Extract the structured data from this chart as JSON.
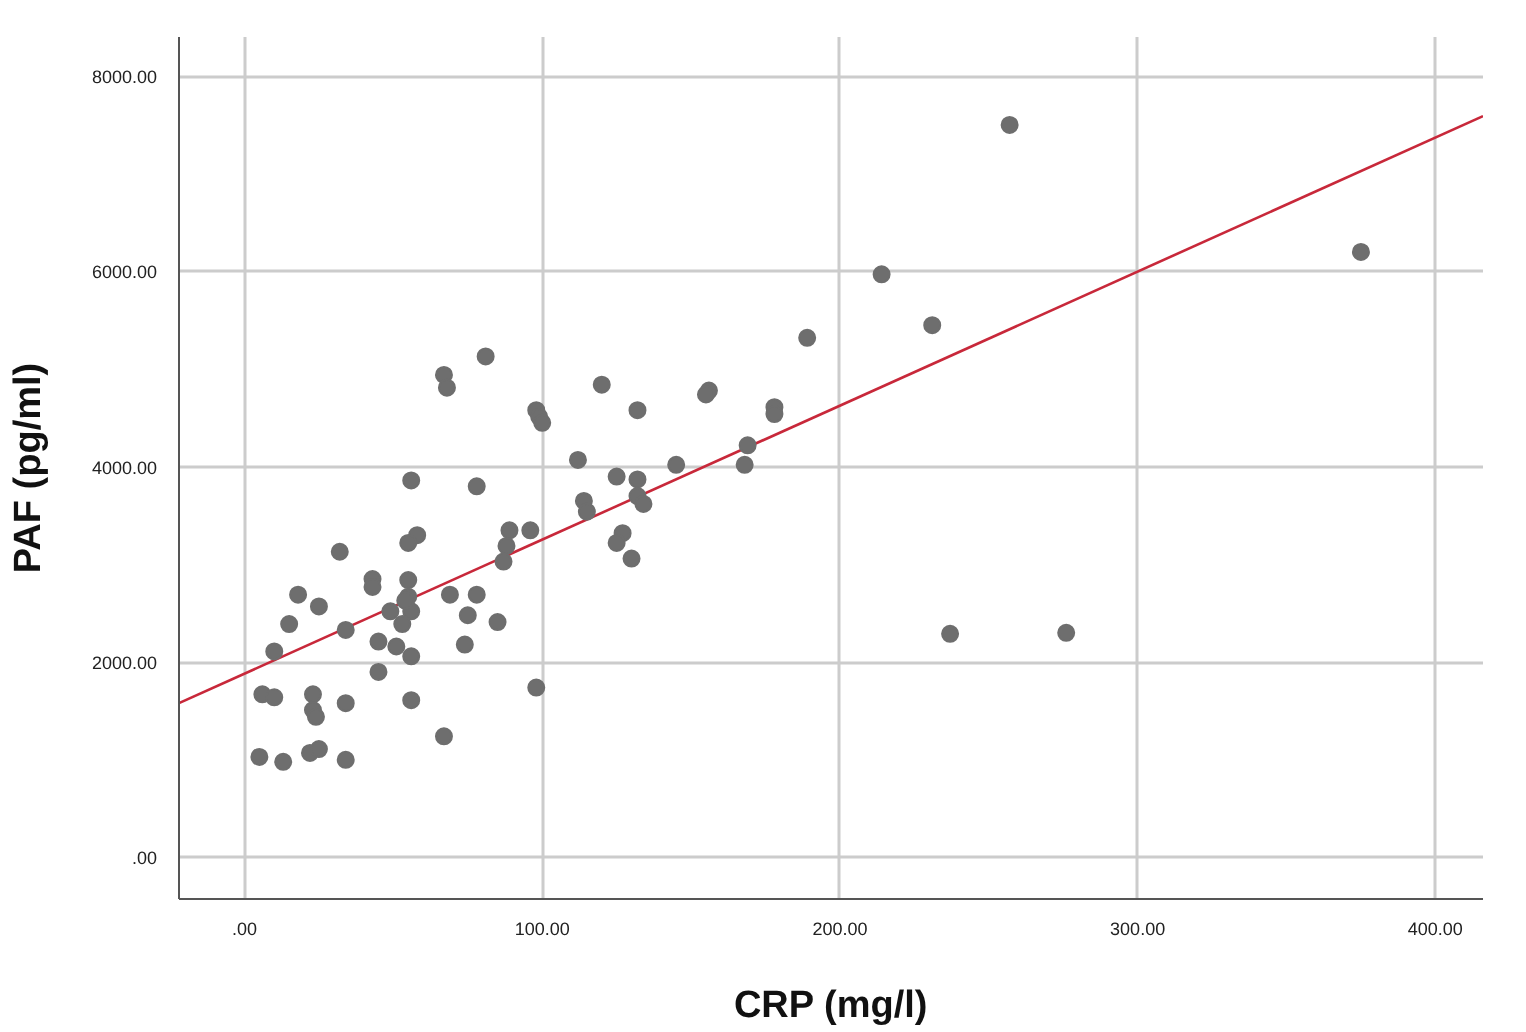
{
  "chart_data": {
    "type": "scatter",
    "xlabel": "CRP (mg/l)",
    "ylabel": "PAF (pg/ml)",
    "xlim": [
      -22,
      416
    ],
    "ylim": [
      -425,
      8400
    ],
    "xticks": [
      {
        "value": 0,
        "label": ".00"
      },
      {
        "value": 100,
        "label": "100.00"
      },
      {
        "value": 200,
        "label": "200.00"
      },
      {
        "value": 300,
        "label": "300.00"
      },
      {
        "value": 400,
        "label": "400.00"
      }
    ],
    "yticks": [
      {
        "value": 0,
        "label": ".00"
      },
      {
        "value": 2000,
        "label": "2000.00"
      },
      {
        "value": 4000,
        "label": "4000.00"
      },
      {
        "value": 6000,
        "label": "6000.00"
      },
      {
        "value": 8000,
        "label": "8000.00"
      }
    ],
    "grid": true,
    "series": [
      {
        "color": "#6e6e6e",
        "marker": "circle",
        "x": [
          257,
          375,
          214,
          231,
          189,
          81,
          67,
          68,
          120,
          156,
          155,
          98,
          99,
          100,
          132,
          178,
          178,
          169,
          168,
          145,
          112,
          125,
          132,
          56,
          78,
          114,
          115,
          132,
          134,
          127,
          125,
          130,
          89,
          96,
          88,
          87,
          58,
          55,
          32,
          18,
          25,
          15,
          10,
          34,
          43,
          43,
          49,
          55,
          55,
          56,
          53,
          54,
          69,
          78,
          75,
          85,
          74,
          45,
          51,
          56,
          45,
          98,
          6,
          10,
          23,
          23,
          24,
          34,
          56,
          67,
          5,
          13,
          22,
          25,
          34,
          237,
          276
        ],
        "values": [
          7500,
          6200,
          5970,
          5450,
          5320,
          5130,
          4940,
          4810,
          4840,
          4780,
          4740,
          4580,
          4510,
          4450,
          4580,
          4610,
          4540,
          4220,
          4020,
          4020,
          4070,
          3900,
          3870,
          3860,
          3800,
          3650,
          3540,
          3700,
          3620,
          3320,
          3220,
          3060,
          3350,
          3350,
          3190,
          3030,
          3300,
          3220,
          3130,
          2690,
          2570,
          2390,
          2110,
          2330,
          2850,
          2770,
          2520,
          2840,
          2670,
          2520,
          2390,
          2630,
          2690,
          2690,
          2480,
          2410,
          2180,
          2210,
          2160,
          2060,
          1900,
          1740,
          1670,
          1640,
          1670,
          1510,
          1440,
          1580,
          1610,
          1240,
          1030,
          980,
          1070,
          1110,
          1000,
          2290,
          2300
        ]
      },
      {
        "type": "line",
        "color": "#c8283a",
        "marker": "none",
        "x": [
          -22,
          416
        ],
        "values": [
          1580,
          7590
        ]
      }
    ]
  }
}
